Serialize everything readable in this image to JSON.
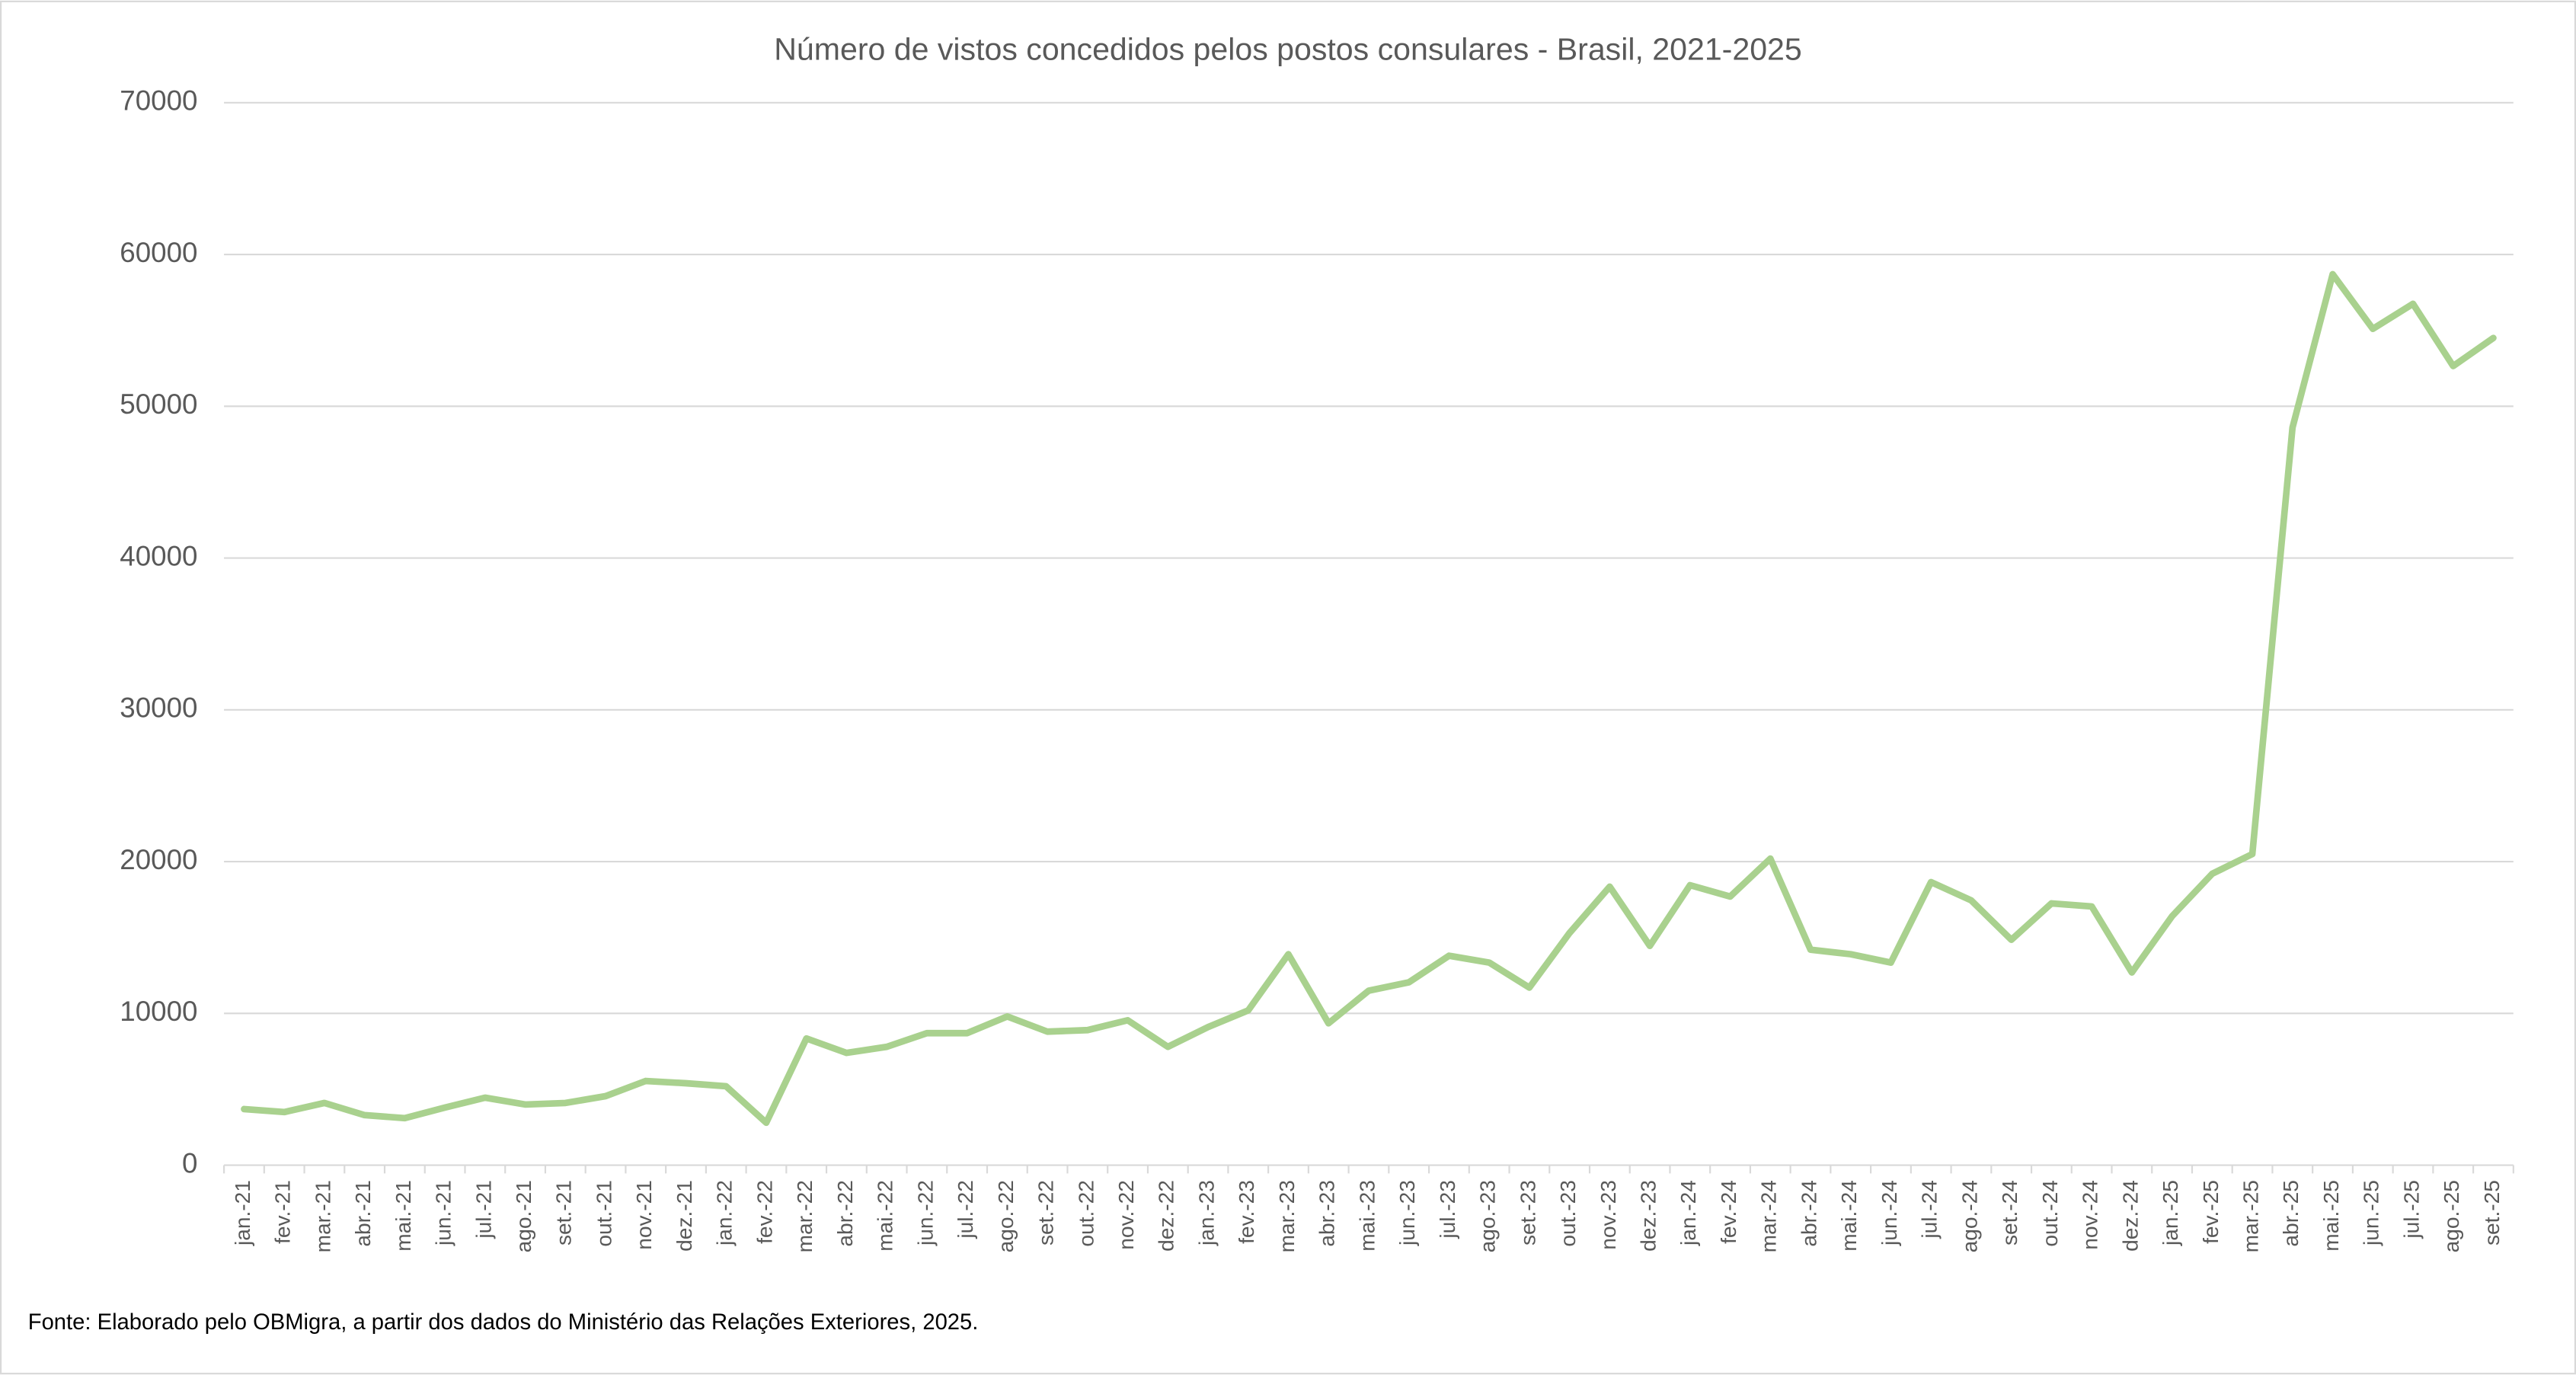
{
  "chart_data": {
    "type": "line",
    "title": "Número de vistos concedidos pelos postos consulares - Brasil, 2021-2025",
    "source": "Fonte: Elaborado pelo OBMigra, a partir dos dados do Ministério das Relações Exteriores, 2025.",
    "categories": [
      "jan.-21",
      "fev.-21",
      "mar.-21",
      "abr.-21",
      "mai.-21",
      "jun.-21",
      "jul.-21",
      "ago.-21",
      "set.-21",
      "out.-21",
      "nov.-21",
      "dez.-21",
      "jan.-22",
      "fev.-22",
      "mar.-22",
      "abr.-22",
      "mai.-22",
      "jun.-22",
      "jul.-22",
      "ago.-22",
      "set.-22",
      "out.-22",
      "nov.-22",
      "dez.-22",
      "jan.-23",
      "fev.-23",
      "mar.-23",
      "abr.-23",
      "mai.-23",
      "jun.-23",
      "jul.-23",
      "ago.-23",
      "set.-23",
      "out.-23",
      "nov.-23",
      "dez.-23",
      "jan.-24",
      "fev.-24",
      "mar.-24",
      "abr.-24",
      "mai.-24",
      "jun.-24",
      "jul.-24",
      "ago.-24",
      "set.-24",
      "out.-24",
      "nov.-24",
      "dez.-24",
      "jan.-25",
      "fev.-25",
      "mar.-25",
      "abr.-25",
      "mai.-25",
      "jun.-25",
      "jul.-25",
      "ago.-25",
      "set.-25"
    ],
    "values": [
      3700,
      3500,
      4100,
      3300,
      3100,
      3800,
      4450,
      4000,
      4100,
      4550,
      5550,
      5400,
      5200,
      2800,
      8350,
      7400,
      7800,
      8700,
      8700,
      9800,
      8800,
      8900,
      9550,
      7800,
      9100,
      10200,
      13900,
      9350,
      11500,
      12050,
      13800,
      13350,
      11700,
      15300,
      18350,
      14450,
      18450,
      17700,
      20200,
      14200,
      13900,
      13350,
      18650,
      17450,
      14850,
      17250,
      17050,
      12700,
      16400,
      19200,
      20500,
      48600,
      58700,
      55100,
      56750,
      52650,
      54500
    ],
    "color": "#a9d18e",
    "ylim": [
      0,
      70000
    ],
    "yticks": [
      0,
      10000,
      20000,
      30000,
      40000,
      50000,
      60000,
      70000
    ],
    "grid": true
  }
}
